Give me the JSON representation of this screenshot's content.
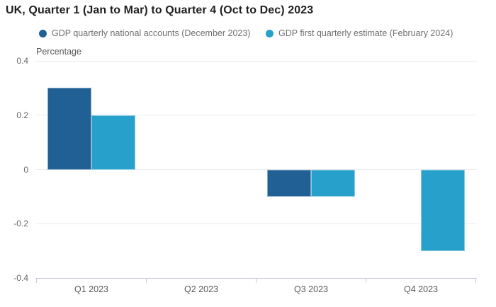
{
  "title": "UK, Quarter 1 (Jan to Mar) to Quarter 4 (Oct to Dec) 2023",
  "legend": {
    "items": [
      {
        "label": "GDP quarterly national accounts (December 2023)",
        "color": "#206095"
      },
      {
        "label": "GDP first quarterly estimate (February 2024)",
        "color": "#27a0cc"
      }
    ]
  },
  "colors": {
    "series_dark_blue": "#206095",
    "series_light_blue": "#27a0cc",
    "gridline": "#ececec",
    "axis_line": "#c8cbdb",
    "title_text": "#1f1f1f",
    "axis_text": "#595959",
    "legend_text": "#707071"
  },
  "chart_data": {
    "type": "bar",
    "title": "UK, Quarter 1 (Jan to Mar) to Quarter 4 (Oct to Dec) 2023",
    "xlabel": "",
    "ylabel": "Percentage",
    "categories": [
      "Q1 2023",
      "Q2 2023",
      "Q3 2023",
      "Q4 2023"
    ],
    "series": [
      {
        "name": "GDP quarterly national accounts (December 2023)",
        "color": "#206095",
        "values": [
          0.3,
          0,
          -0.1,
          null
        ]
      },
      {
        "name": "GDP first quarterly estimate (February 2024)",
        "color": "#27a0cc",
        "values": [
          0.2,
          0,
          -0.1,
          -0.3
        ]
      }
    ],
    "y_tick_labels": [
      "0.4",
      "0.2",
      "0",
      "-0.2",
      "-0.4"
    ],
    "y_tick_values": [
      0.4,
      0.2,
      0,
      -0.2,
      -0.4
    ],
    "ylim": [
      -0.4,
      0.4
    ],
    "grid": true,
    "legend_position": "top"
  }
}
